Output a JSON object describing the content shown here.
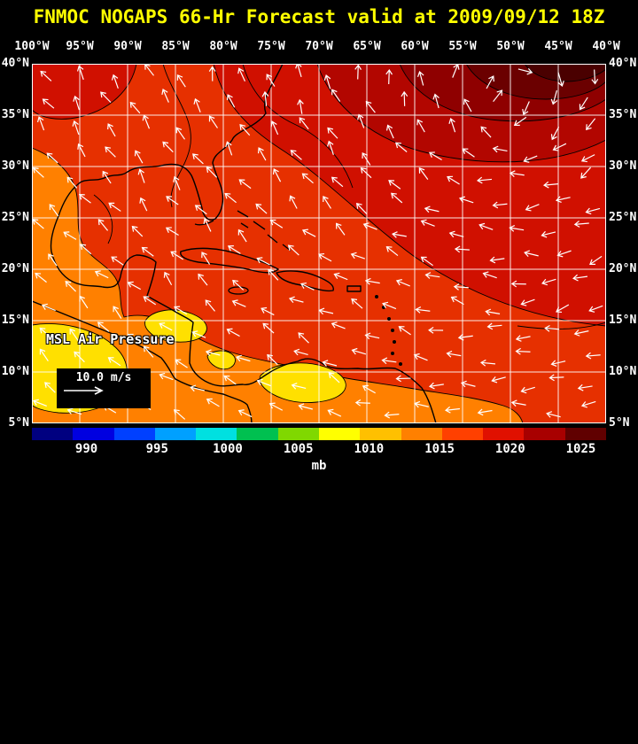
{
  "title": "FNMOC NOGAPS 66-Hr Forecast valid at 2009/09/12 18Z",
  "map": {
    "lon_labels": [
      "100°W",
      "95°W",
      "90°W",
      "85°W",
      "80°W",
      "75°W",
      "70°W",
      "65°W",
      "60°W",
      "55°W",
      "50°W",
      "45°W",
      "40°W"
    ],
    "lat_labels": [
      "40°N",
      "35°N",
      "30°N",
      "25°N",
      "20°N",
      "15°N",
      "10°N",
      "5°N"
    ],
    "field_label": "MSL Air Pressure",
    "wind_reference_label": "10.0 m/s"
  },
  "colorbar": {
    "unit_label": "mb",
    "tick_labels": [
      "990",
      "995",
      "1000",
      "1005",
      "1010",
      "1015",
      "1020",
      "1025"
    ],
    "segment_colors": [
      "#000080",
      "#0000e0",
      "#0040ff",
      "#00a0ff",
      "#00e0e0",
      "#00c050",
      "#80d800",
      "#ffff00",
      "#ffc000",
      "#ff8000",
      "#ff4000",
      "#e01000",
      "#a80000",
      "#600000"
    ]
  },
  "colors": {
    "background": "#000000",
    "title_text": "#ffff00",
    "label_text": "#ffffff",
    "grid": "#ffffff",
    "coastline": "#000000",
    "wind_arrow": "#ffffff",
    "field": {
      "base_red": "#e63000",
      "deep_red": "#d01000",
      "dark_red": "#b20600",
      "darker_red": "#8f0000",
      "maroon": "#6b0000",
      "core": "#4a0000",
      "orange": "#ff8000",
      "yellow": "#ffe000"
    }
  },
  "chart_data": {
    "type": "heatmap",
    "title": "FNMOC NOGAPS 66-Hr Forecast valid at 2009/09/12 18Z",
    "field": "MSL Air Pressure",
    "unit": "mb",
    "lon_extent_deg_W": [
      100,
      40
    ],
    "lat_extent_deg_N": [
      5,
      40
    ],
    "colorbar_ticks_mb": [
      990,
      995,
      1000,
      1005,
      1010,
      1015,
      1020,
      1025
    ],
    "wind_reference_ms": 10.0,
    "pattern": "High pressure (dark red, 1020-1025 mb) centered near the NE corner; pressure decreases toward the SW with orange/yellow (1008-1014 mb) over Central America, the SW Caribbean and Venezuela; white wind vectors show clockwise flow around the high and easterly trades in the south."
  }
}
